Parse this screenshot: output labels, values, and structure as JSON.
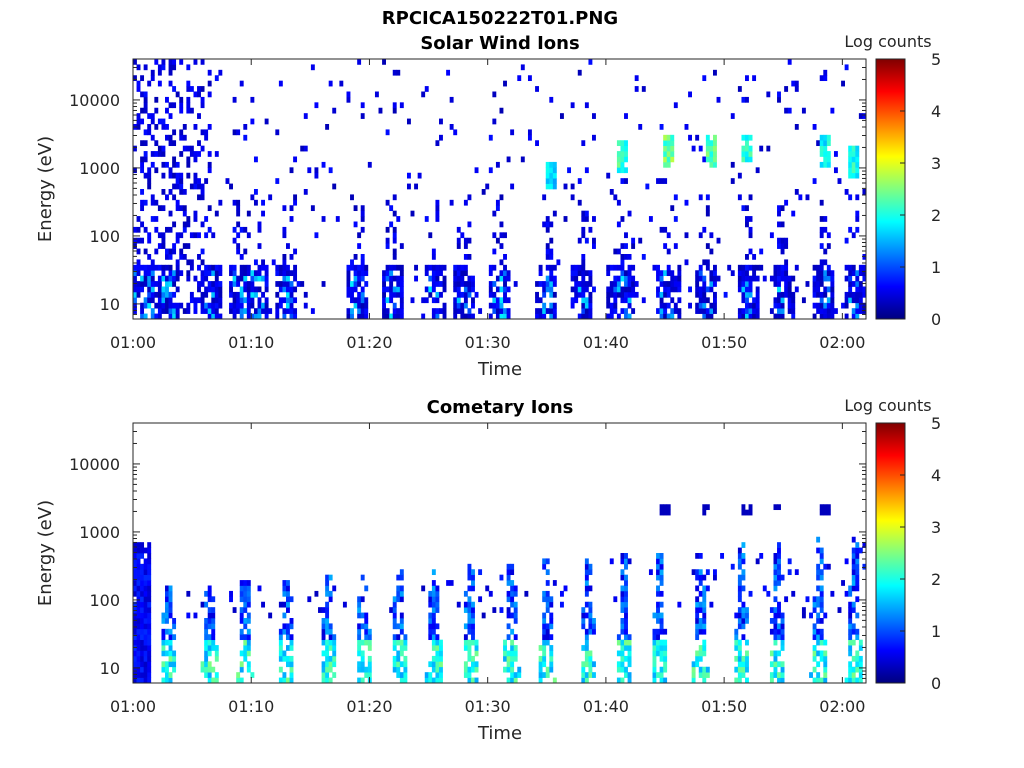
{
  "figure": {
    "title": "RPCICA150222T01.PNG"
  },
  "chart_data": [
    {
      "type": "heatmap",
      "title": "Solar Wind Ions",
      "xlabel": "Time",
      "ylabel": "Energy (eV)",
      "x_ticks": [
        "01:00",
        "01:10",
        "01:20",
        "01:30",
        "01:40",
        "01:50",
        "02:00"
      ],
      "y_ticks": [
        "10",
        "100",
        "1000",
        "10000"
      ],
      "y_scale": "log",
      "ylim": [
        6,
        40000
      ],
      "xlim": [
        "01:00",
        "02:02"
      ],
      "colorbar": {
        "label": "Log counts",
        "ticks": [
          "0",
          "1",
          "2",
          "3",
          "4",
          "5"
        ],
        "range": [
          0,
          5
        ],
        "colormap": "jet"
      },
      "features": {
        "bursts_min": [
          0.5,
          1.2,
          3.0,
          6.5,
          9.0,
          10.5,
          13.0,
          19.0,
          22.0,
          25.5,
          28.0,
          31.0,
          35.0,
          38.0,
          41.0,
          41.5,
          45.0,
          45.5,
          48.5,
          52.0,
          55.0,
          58.5,
          61.0
        ],
        "hot_spots": [
          {
            "t_min": 35.5,
            "e_ev": 800,
            "level": 2.0
          },
          {
            "t_min": 41.5,
            "e_ev": 1500,
            "level": 2.5
          },
          {
            "t_min": 45.2,
            "e_ev": 1800,
            "level": 2.8
          },
          {
            "t_min": 48.8,
            "e_ev": 1800,
            "level": 2.6
          },
          {
            "t_min": 52.0,
            "e_ev": 1900,
            "level": 2.4
          },
          {
            "t_min": 58.5,
            "e_ev": 1700,
            "level": 2.2
          },
          {
            "t_min": 61.0,
            "e_ev": 1200,
            "level": 2.3
          }
        ]
      }
    },
    {
      "type": "heatmap",
      "title": "Cometary Ions",
      "xlabel": "Time",
      "ylabel": "Energy (eV)",
      "x_ticks": [
        "01:00",
        "01:10",
        "01:20",
        "01:30",
        "01:40",
        "01:50",
        "02:00"
      ],
      "y_ticks": [
        "10",
        "100",
        "1000",
        "10000"
      ],
      "y_scale": "log",
      "ylim": [
        6,
        40000
      ],
      "xlim": [
        "01:00",
        "02:02"
      ],
      "colorbar": {
        "label": "Log counts",
        "ticks": [
          "0",
          "1",
          "2",
          "3",
          "4",
          "5"
        ],
        "range": [
          0,
          5
        ],
        "colormap": "jet"
      },
      "features": {
        "bursts_min": [
          0.8,
          3.0,
          6.5,
          9.5,
          13.0,
          16.5,
          19.5,
          22.5,
          25.5,
          28.5,
          32.0,
          35.0,
          38.5,
          41.5,
          44.5,
          48.0,
          51.5,
          54.5,
          58.0,
          61.0
        ],
        "peak_level": 2.7,
        "high_energy_dots": [
          {
            "t_min": 45.0,
            "e_ev": 2000
          },
          {
            "t_min": 48.5,
            "e_ev": 2000
          },
          {
            "t_min": 52.0,
            "e_ev": 2000
          },
          {
            "t_min": 54.5,
            "e_ev": 2000
          },
          {
            "t_min": 58.5,
            "e_ev": 2000
          }
        ]
      }
    }
  ]
}
